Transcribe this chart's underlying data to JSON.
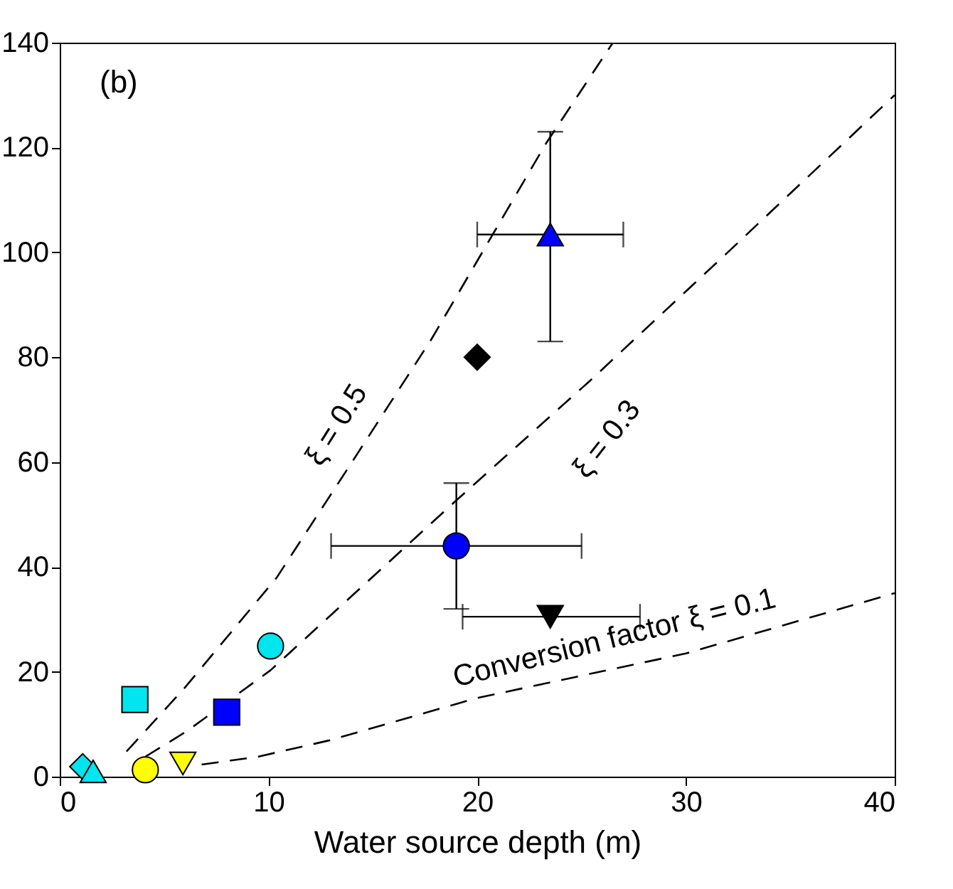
{
  "chart_data": {
    "type": "scatter",
    "xlabel": "Water source depth (m)",
    "xlim": [
      0,
      40
    ],
    "xticks": [
      0,
      10,
      20,
      30,
      40
    ],
    "ylim": [
      0,
      140
    ],
    "yticks": [
      0,
      20,
      40,
      60,
      80,
      100,
      120,
      140
    ],
    "grid": false,
    "series": [
      {
        "type": "line",
        "color": "#000000",
        "line_style": "dashed",
        "x": [
          3.2,
          6,
          10.4,
          14,
          17.8,
          23.3,
          26.5
        ],
        "values": [
          4.8,
          17,
          38,
          60,
          83.4,
          120.8,
          140
        ]
      },
      {
        "type": "line",
        "color": "#000000",
        "line_style": "dashed",
        "x": [
          4.1,
          6.1,
          10.1,
          19,
          25.4,
          32,
          40
        ],
        "values": [
          3.8,
          8.7,
          20.3,
          52.7,
          75.5,
          100,
          130
        ]
      },
      {
        "type": "line",
        "color": "#000000",
        "line_style": "dashed",
        "x": [
          6.8,
          9.5,
          12.9,
          20,
          30,
          40
        ],
        "values": [
          2.3,
          3.8,
          6.9,
          15,
          23.5,
          35
        ]
      },
      {
        "color": "#00e5ee",
        "marker": "diamond",
        "x": [
          1.1
        ],
        "values": [
          1.9
        ]
      },
      {
        "color": "#00e5ee",
        "marker": "triangle",
        "x": [
          1.6
        ],
        "values": [
          1
        ]
      },
      {
        "color": "#00e5ee",
        "marker": "square",
        "x": [
          3.6
        ],
        "values": [
          14.7
        ]
      },
      {
        "color": "#ffff00",
        "marker": "circle",
        "x": [
          4.1
        ],
        "values": [
          1.3
        ]
      },
      {
        "color": "#ffff00",
        "marker": "triangle-down",
        "x": [
          5.9
        ],
        "values": [
          2.5
        ]
      },
      {
        "color": "#0000ff",
        "marker": "square",
        "x": [
          8
        ],
        "values": [
          12.3
        ]
      },
      {
        "color": "#00e5ee",
        "marker": "circle",
        "x": [
          10.1
        ],
        "values": [
          24.9
        ]
      },
      {
        "color": "#000000",
        "marker": "diamond",
        "x": [
          20
        ],
        "values": [
          80
        ]
      },
      {
        "color": "#0000ff",
        "marker": "triangle",
        "x": [
          23.5
        ],
        "values": [
          103.4
        ],
        "errors": [
          [
            83,
            123
          ]
        ],
        "xerrors": [
          [
            20,
            27
          ]
        ]
      },
      {
        "color": "#0000ff",
        "marker": "circle",
        "x": [
          19
        ],
        "values": [
          44
        ],
        "errors": [
          [
            32,
            56
          ]
        ],
        "xerrors": [
          [
            13,
            25
          ]
        ]
      },
      {
        "color": "#000000",
        "marker": "triangle-down",
        "x": [
          23.5
        ],
        "values": [
          30.5
        ],
        "xerrors": [
          [
            19.3,
            27.8
          ]
        ]
      }
    ],
    "annotations": [
      "(b)",
      "ξ = 0.5",
      "ξ = 0.3",
      "Conversion factor ξ = 0.1"
    ]
  }
}
